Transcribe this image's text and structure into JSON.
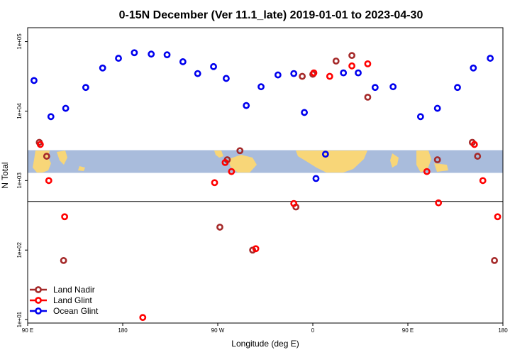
{
  "chart_data": {
    "type": "scatter",
    "title": "0-15N December (Ver 11.1_late)   2019-01-01 to 2023-04-30",
    "xlabel": "Longitude (deg E)",
    "ylabel": "N Total",
    "xlim": [
      90,
      540
    ],
    "ylim_log10": [
      0.95,
      5.2
    ],
    "x_ticks": [
      {
        "value": 90,
        "label": "90 E"
      },
      {
        "value": 180,
        "label": "180"
      },
      {
        "value": 270,
        "label": "90 W"
      },
      {
        "value": 360,
        "label": "0"
      },
      {
        "value": 450,
        "label": "90 E"
      },
      {
        "value": 540,
        "label": "180"
      }
    ],
    "y_ticks": [
      {
        "log10": 1,
        "label": "1e+01"
      },
      {
        "log10": 2,
        "label": "1e+02"
      },
      {
        "log10": 3,
        "label": "1e+03"
      },
      {
        "log10": 4,
        "label": "1e+04"
      },
      {
        "log10": 5,
        "label": "1e+05"
      }
    ],
    "hline_log10": 2.7,
    "series": [
      {
        "name": "Land Nadir",
        "color": "#a52a2a",
        "points": [
          [
            101,
            3.55
          ],
          [
            108,
            3.35
          ],
          [
            124,
            1.85
          ],
          [
            272,
            2.33
          ],
          [
            279,
            3.3
          ],
          [
            291,
            3.43
          ],
          [
            303,
            2.0
          ],
          [
            344,
            2.62
          ],
          [
            350,
            4.5
          ],
          [
            360,
            4.53
          ],
          [
            382,
            4.72
          ],
          [
            397,
            4.8
          ],
          [
            412,
            4.2
          ],
          [
            478,
            3.3
          ],
          [
            511,
            3.55
          ],
          [
            516,
            3.35
          ],
          [
            532,
            1.85
          ]
        ]
      },
      {
        "name": "Land Glint",
        "color": "#ff0000",
        "points": [
          [
            102,
            3.52
          ],
          [
            110,
            3.0
          ],
          [
            125,
            2.48
          ],
          [
            199,
            1.03
          ],
          [
            267,
            2.97
          ],
          [
            277,
            3.26
          ],
          [
            283,
            3.13
          ],
          [
            306,
            2.02
          ],
          [
            342,
            2.67
          ],
          [
            361,
            4.55
          ],
          [
            376,
            4.5
          ],
          [
            397,
            4.65
          ],
          [
            412,
            4.68
          ],
          [
            468,
            3.13
          ],
          [
            479,
            2.68
          ],
          [
            513,
            3.52
          ],
          [
            521,
            3.0
          ],
          [
            535,
            2.48
          ]
        ]
      },
      {
        "name": "Ocean Glint",
        "color": "#0000ee",
        "points": [
          [
            96,
            4.44
          ],
          [
            112,
            3.92
          ],
          [
            126,
            4.04
          ],
          [
            145,
            4.34
          ],
          [
            161,
            4.62
          ],
          [
            176,
            4.76
          ],
          [
            191,
            4.84
          ],
          [
            207,
            4.82
          ],
          [
            222,
            4.81
          ],
          [
            237,
            4.71
          ],
          [
            251,
            4.54
          ],
          [
            266,
            4.64
          ],
          [
            278,
            4.47
          ],
          [
            297,
            4.08
          ],
          [
            311,
            4.35
          ],
          [
            327,
            4.52
          ],
          [
            342,
            4.54
          ],
          [
            352,
            3.98
          ],
          [
            363,
            3.03
          ],
          [
            372,
            3.38
          ],
          [
            389,
            4.55
          ],
          [
            403,
            4.55
          ],
          [
            419,
            4.34
          ],
          [
            436,
            4.35
          ],
          [
            462,
            3.92
          ],
          [
            478,
            4.04
          ],
          [
            497,
            4.34
          ],
          [
            512,
            4.62
          ],
          [
            528,
            4.76
          ]
        ]
      }
    ]
  }
}
